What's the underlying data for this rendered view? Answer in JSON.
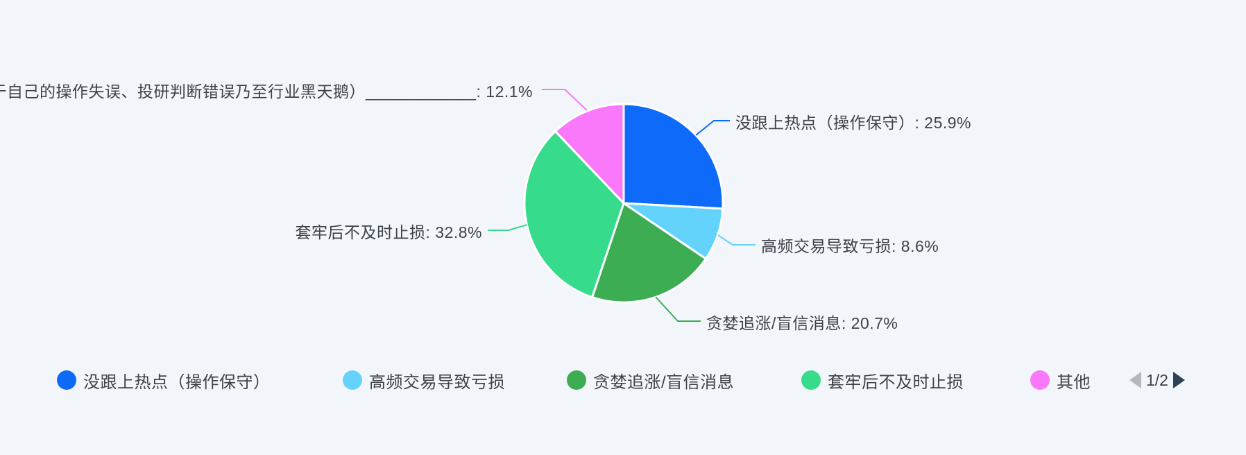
{
  "background_color": "#f2f5f9",
  "text_color": "#3d434a",
  "chart_data": {
    "type": "pie",
    "unit": "%",
    "start_angle": "top",
    "direction": "clockwise",
    "border_color": "#ffffff",
    "series": [
      {
        "name": "没跟上热点（操作保守）",
        "value": 25.9,
        "color": "#0e6bfa"
      },
      {
        "name": "高频交易导致亏损",
        "value": 8.6,
        "color": "#64d3fb"
      },
      {
        "name": "贪婪追涨/盲信消息",
        "value": 20.7,
        "color": "#3cad53"
      },
      {
        "name": "套牢后不及时止损",
        "value": 32.8,
        "color": "#37db8c"
      },
      {
        "name": "其他",
        "value": 12.1,
        "color": "#fa78fa"
      }
    ],
    "legend_position": "bottom"
  },
  "callouts": [
    {
      "text": "没跟上热点（操作保守）: 25.9%"
    },
    {
      "text": "高频交易导致亏损: 8.6%"
    },
    {
      "text": "贪婪追涨/盲信消息: 20.7%"
    },
    {
      "text": "套牢后不及时止损: 32.8%"
    },
    {
      "text": "于自己的操作失误、投研判断错误乃至行业黑天鹅）____________: 12.1%"
    }
  ],
  "legend": {
    "pagination": {
      "current": "1/2",
      "prev_icon_color": "#b4b8bf",
      "next_icon_color": "#2e4454"
    }
  }
}
